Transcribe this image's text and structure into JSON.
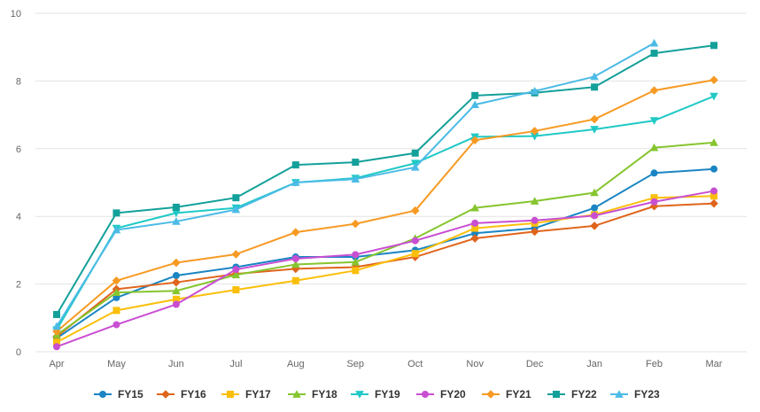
{
  "chart_data": {
    "type": "line",
    "title": "",
    "xlabel": "",
    "ylabel": "",
    "ylim": [
      0,
      10
    ],
    "yticks": [
      0,
      2,
      4,
      6,
      8,
      10
    ],
    "grid": "horizontal",
    "legend_position": "bottom",
    "categories": [
      "Apr",
      "May",
      "Jun",
      "Jul",
      "Aug",
      "Sep",
      "Oct",
      "Nov",
      "Dec",
      "Jan",
      "Feb",
      "Mar"
    ],
    "series": [
      {
        "name": "FY15",
        "color": "#1a85c3",
        "marker": "circle",
        "values": [
          0.4,
          1.6,
          2.25,
          2.5,
          2.8,
          2.8,
          3.0,
          3.5,
          3.65,
          4.25,
          5.28,
          5.4
        ]
      },
      {
        "name": "FY16",
        "color": "#e0651c",
        "marker": "diamond",
        "values": [
          0.45,
          1.85,
          2.05,
          2.3,
          2.45,
          2.5,
          2.8,
          3.35,
          3.55,
          3.72,
          4.3,
          4.38
        ]
      },
      {
        "name": "FY17",
        "color": "#fbbf0a",
        "marker": "square",
        "values": [
          0.28,
          1.22,
          1.55,
          1.83,
          2.1,
          2.4,
          2.9,
          3.65,
          3.8,
          4.05,
          4.55,
          4.6
        ]
      },
      {
        "name": "FY18",
        "color": "#86c52f",
        "marker": "triangle",
        "values": [
          0.5,
          1.75,
          1.8,
          2.27,
          2.58,
          2.65,
          3.35,
          4.25,
          4.45,
          4.7,
          6.03,
          6.18
        ]
      },
      {
        "name": "FY19",
        "color": "#1fc9c6",
        "marker": "triangle-down",
        "values": [
          0.65,
          3.65,
          4.1,
          4.25,
          5.0,
          5.13,
          5.57,
          6.35,
          6.37,
          6.57,
          6.83,
          7.55
        ]
      },
      {
        "name": "FY20",
        "color": "#c94fd2",
        "marker": "circle",
        "values": [
          0.15,
          0.8,
          1.4,
          2.43,
          2.75,
          2.87,
          3.28,
          3.8,
          3.88,
          4.02,
          4.43,
          4.75
        ]
      },
      {
        "name": "FY21",
        "color": "#f79a23",
        "marker": "diamond",
        "values": [
          0.6,
          2.1,
          2.63,
          2.88,
          3.53,
          3.78,
          4.17,
          6.25,
          6.52,
          6.87,
          7.72,
          8.03
        ]
      },
      {
        "name": "FY22",
        "color": "#14a09a",
        "marker": "square",
        "values": [
          1.1,
          4.1,
          4.27,
          4.55,
          5.52,
          5.6,
          5.87,
          7.57,
          7.65,
          7.82,
          8.82,
          9.05
        ]
      },
      {
        "name": "FY23",
        "color": "#4bbbe6",
        "marker": "triangle",
        "values": [
          0.75,
          3.6,
          3.85,
          4.2,
          5.0,
          5.1,
          5.45,
          7.3,
          7.7,
          8.13,
          9.12,
          null
        ]
      }
    ]
  }
}
